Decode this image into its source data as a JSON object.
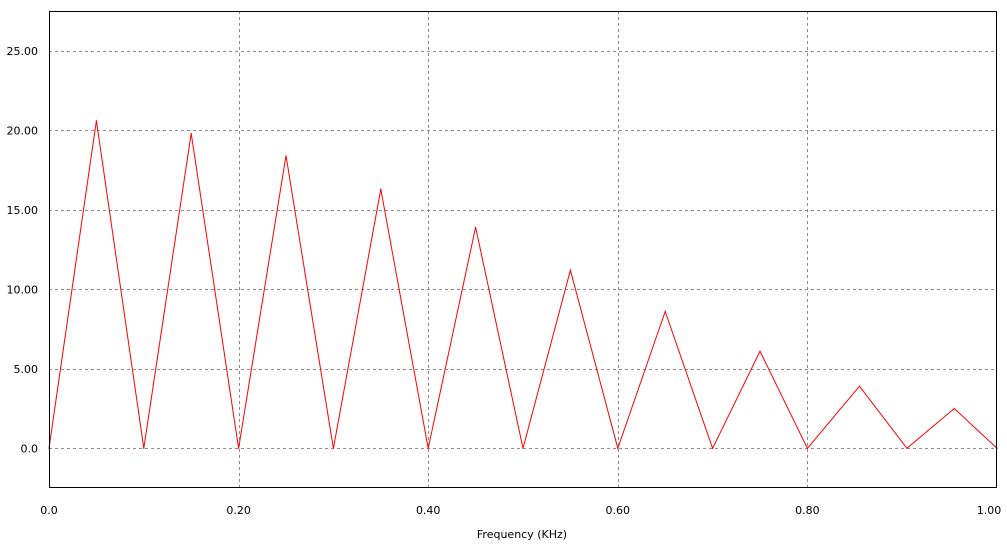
{
  "chart_data": {
    "type": "line",
    "title": "",
    "xlabel": "Frequency (KHz)",
    "ylabel": "",
    "xlim": [
      0,
      1.0
    ],
    "ylim": [
      -2.5,
      27.5
    ],
    "grid": true,
    "legend": "none",
    "x_ticks": [
      0.0,
      0.2,
      0.4,
      0.6,
      0.8,
      1.0
    ],
    "x_tick_labels": [
      "0.0",
      "0.20",
      "0.40",
      "0.60",
      "0.80",
      "1.00"
    ],
    "y_ticks": [
      0,
      5,
      10,
      15,
      20,
      25
    ],
    "y_tick_labels": [
      "0.0",
      "5.00",
      "10.00",
      "15.00",
      "20.00",
      "25.00"
    ],
    "series": [
      {
        "color": "#ff0000",
        "x": [
          0.0,
          0.05,
          0.1,
          0.15,
          0.2,
          0.25,
          0.3,
          0.35,
          0.4,
          0.45,
          0.5,
          0.55,
          0.6,
          0.65,
          0.7,
          0.75,
          0.8,
          0.855,
          0.905,
          0.955,
          1.0
        ],
        "y": [
          0.0,
          20.6,
          0.0,
          19.8,
          0.0,
          18.4,
          0.0,
          16.3,
          0.0,
          13.9,
          0.0,
          11.2,
          0.0,
          8.6,
          0.0,
          6.1,
          0.0,
          3.9,
          0.0,
          2.5,
          0.0
        ]
      }
    ]
  },
  "colors": {
    "background": "#ffffff",
    "grid": "#8c8c8c",
    "frame": "#000000",
    "series": "#ff0000"
  }
}
